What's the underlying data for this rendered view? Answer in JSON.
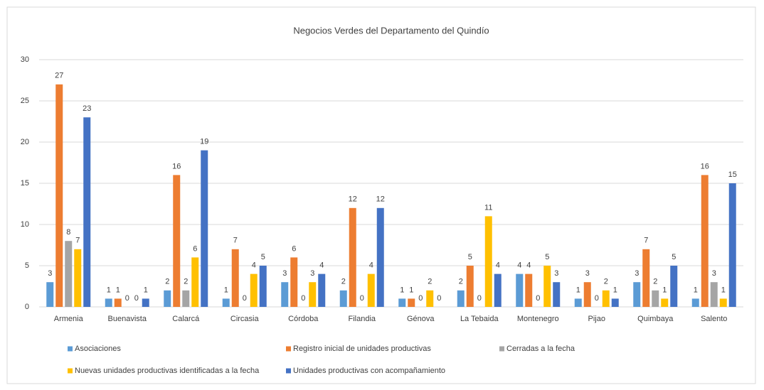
{
  "chart_data": {
    "type": "bar",
    "title": "Negocios Verdes del Departamento del Quindío",
    "categories": [
      "Armenia",
      "Buenavista",
      "Calarcá",
      "Circasia",
      "Córdoba",
      "Filandia",
      "Génova",
      "La Tebaida",
      "Montenegro",
      "Pijao",
      "Quimbaya",
      "Salento"
    ],
    "series": [
      {
        "name": "Asociaciones",
        "color": "#5b9bd5",
        "values": [
          3,
          1,
          2,
          1,
          3,
          2,
          1,
          2,
          4,
          1,
          3,
          1
        ]
      },
      {
        "name": "Registro inicial de unidades productivas",
        "color": "#ed7d31",
        "values": [
          27,
          1,
          16,
          7,
          6,
          12,
          1,
          5,
          4,
          3,
          7,
          16
        ]
      },
      {
        "name": "Cerradas a la fecha",
        "color": "#a5a5a5",
        "values": [
          8,
          0,
          2,
          0,
          0,
          0,
          0,
          0,
          0,
          0,
          2,
          3
        ]
      },
      {
        "name": "Nuevas unidades productivas identificadas  a la fecha",
        "color": "#ffc000",
        "values": [
          7,
          0,
          6,
          4,
          3,
          4,
          2,
          11,
          5,
          2,
          1,
          1
        ]
      },
      {
        "name": "Unidades productivas con acompañamiento",
        "color": "#4472c4",
        "values": [
          23,
          1,
          19,
          5,
          4,
          12,
          0,
          4,
          3,
          1,
          5,
          15
        ]
      }
    ],
    "ylim": [
      0,
      30
    ],
    "yticks": [
      0,
      5,
      10,
      15,
      20,
      25,
      30
    ],
    "grid": true,
    "legend": "bottom"
  }
}
